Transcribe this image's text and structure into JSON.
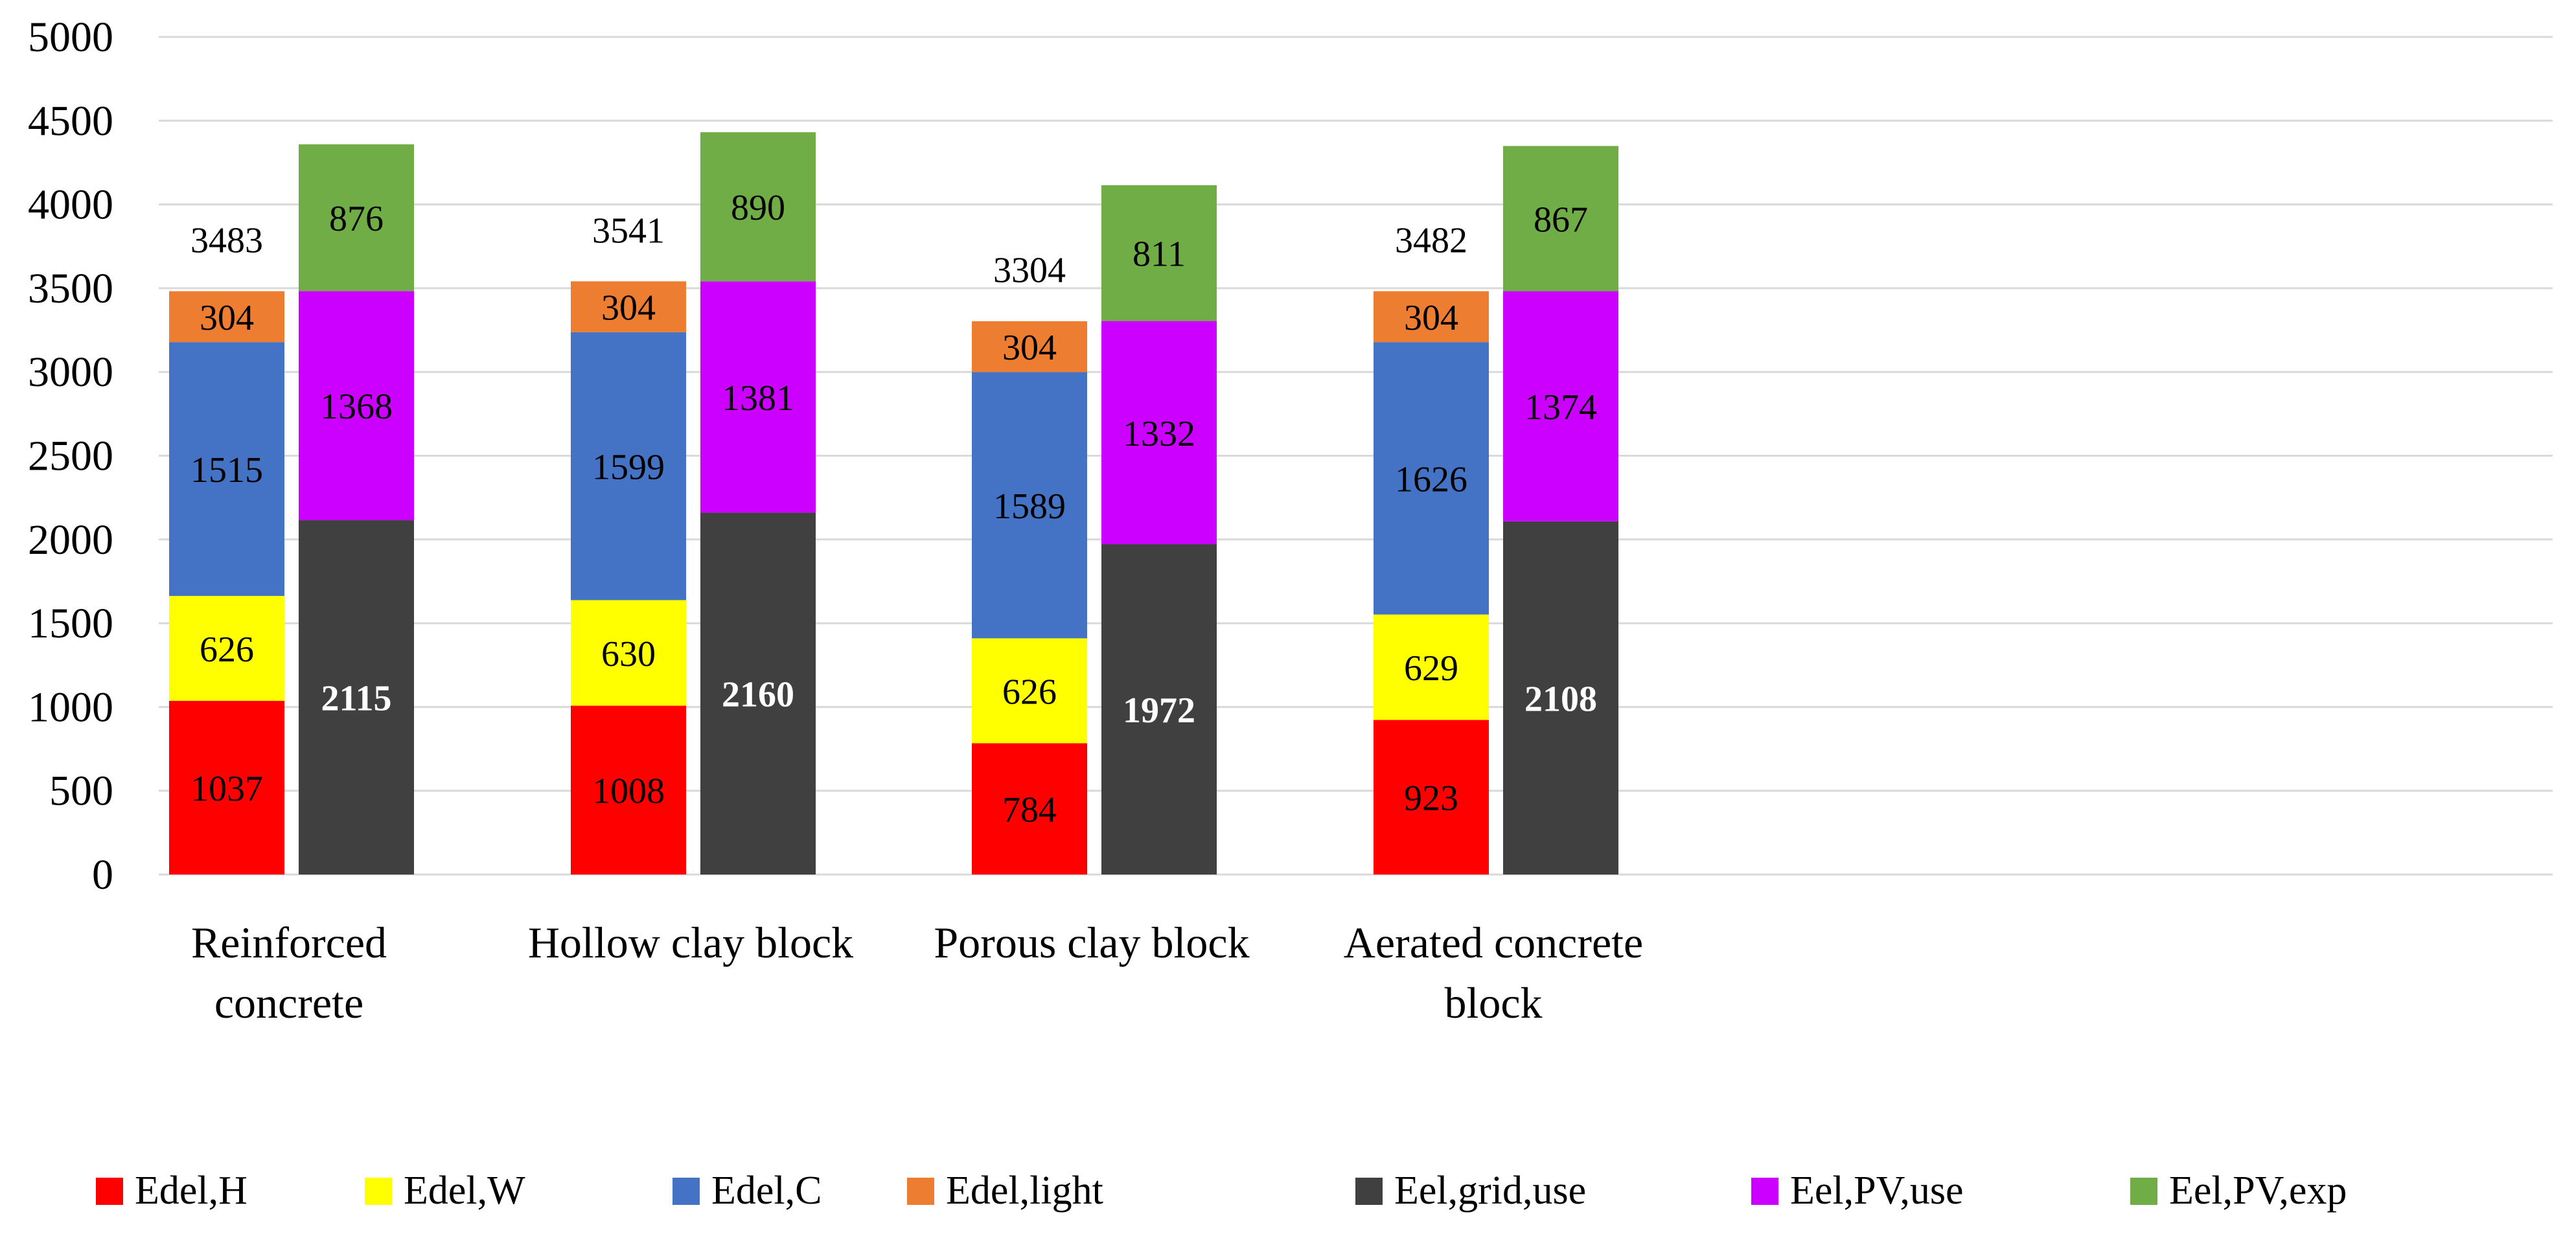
{
  "chart_data": {
    "type": "bar",
    "stacked": true,
    "title": "",
    "xlabel": "",
    "ylabel": "",
    "ylim": [
      0,
      5000
    ],
    "yticks": [
      0,
      500,
      1000,
      1500,
      2000,
      2500,
      3000,
      3500,
      4000,
      4500,
      5000
    ],
    "grid": true,
    "legend_position": "bottom",
    "categories": [
      [
        "Reinforced",
        "concrete"
      ],
      [
        "Hollow clay block"
      ],
      [
        "Porous clay block"
      ],
      [
        "Aerated concrete",
        "block"
      ]
    ],
    "series": [
      {
        "name": "Edel,H",
        "stack": "demand",
        "color": "#ff0000",
        "label_color": "#000000",
        "values": [
          1037,
          1008,
          784,
          923
        ]
      },
      {
        "name": "Edel,W",
        "stack": "demand",
        "color": "#ffff00",
        "label_color": "#000000",
        "values": [
          626,
          630,
          626,
          629
        ]
      },
      {
        "name": "Edel,C",
        "stack": "demand",
        "color": "#4472c4",
        "label_color": "#000000",
        "values": [
          1515,
          1599,
          1589,
          1626
        ]
      },
      {
        "name": "Edel,light",
        "stack": "demand",
        "color": "#ed7d31",
        "label_color": "#000000",
        "values": [
          304,
          304,
          304,
          304
        ]
      },
      {
        "name": "Eel,grid,use",
        "stack": "supply",
        "color": "#404040",
        "label_color": "#ffffff",
        "label_bold": true,
        "values": [
          2115,
          2160,
          1972,
          2108
        ]
      },
      {
        "name": "Eel,PV,use",
        "stack": "supply",
        "color": "#cc00ff",
        "label_color": "#000000",
        "values": [
          1368,
          1381,
          1332,
          1374
        ]
      },
      {
        "name": "Eel,PV,exp",
        "stack": "supply",
        "color": "#70ad47",
        "label_color": "#000000",
        "values": [
          876,
          890,
          811,
          867
        ]
      }
    ],
    "totals": {
      "stack": "demand",
      "values": [
        3483,
        3541,
        3304,
        3482
      ]
    }
  }
}
